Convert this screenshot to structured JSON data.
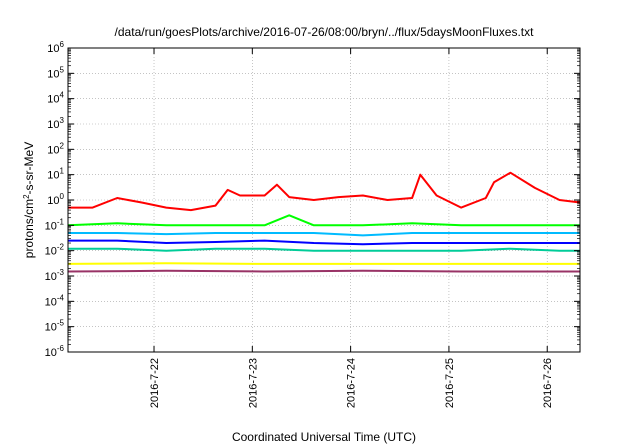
{
  "chart_data": {
    "type": "line",
    "title": "/data/run/goesPlots/archive/2016-07-26/08:00/bryn/../flux/5daysMoonFluxes.txt",
    "xlabel": "Coordinated Universal Time (UTC)",
    "ylabel_parts": [
      "protons/cm",
      "2",
      "-s-sr-MeV"
    ],
    "x_range": [
      "2016-07-21T03:00",
      "2016-07-26T08:00"
    ],
    "x_ticks": [
      "2016-7-22",
      "2016-7-23",
      "2016-7-24",
      "2016-7-25",
      "2016-7-26"
    ],
    "y_scale": "log",
    "ylim": [
      1e-06,
      1000000.0
    ],
    "y_ticks": [
      {
        "base": "10",
        "exp": "-6"
      },
      {
        "base": "10",
        "exp": "-5"
      },
      {
        "base": "10",
        "exp": "-4"
      },
      {
        "base": "10",
        "exp": "-3"
      },
      {
        "base": "10",
        "exp": "-2"
      },
      {
        "base": "10",
        "exp": "-1"
      },
      {
        "base": "10",
        "exp": "0"
      },
      {
        "base": "10",
        "exp": "1"
      },
      {
        "base": "10",
        "exp": "2"
      },
      {
        "base": "10",
        "exp": "3"
      },
      {
        "base": "10",
        "exp": "4"
      },
      {
        "base": "10",
        "exp": "5"
      },
      {
        "base": "10",
        "exp": "6"
      }
    ],
    "grid": true,
    "series": [
      {
        "color": "#ff0000",
        "x": [
          "2016-07-21T03:00",
          "2016-07-21T09:00",
          "2016-07-21T15:00",
          "2016-07-21T21:00",
          "2016-07-22T03:00",
          "2016-07-22T09:00",
          "2016-07-22T15:00",
          "2016-07-22T18:00",
          "2016-07-22T21:00",
          "2016-07-23T03:00",
          "2016-07-23T06:00",
          "2016-07-23T09:00",
          "2016-07-23T15:00",
          "2016-07-23T21:00",
          "2016-07-24T03:00",
          "2016-07-24T09:00",
          "2016-07-24T15:00",
          "2016-07-24T17:00",
          "2016-07-24T21:00",
          "2016-07-25T03:00",
          "2016-07-25T09:00",
          "2016-07-25T11:00",
          "2016-07-25T15:00",
          "2016-07-25T21:00",
          "2016-07-26T03:00",
          "2016-07-26T08:00"
        ],
        "y": [
          0.5,
          0.5,
          1.2,
          0.8,
          0.5,
          0.4,
          0.6,
          2.5,
          1.5,
          1.5,
          4,
          1.3,
          1.0,
          1.3,
          1.5,
          1.0,
          1.2,
          10,
          1.5,
          0.5,
          1.2,
          5,
          12,
          3,
          1.0,
          0.8
        ]
      },
      {
        "color": "#00ff00",
        "x": [
          "2016-07-21T03:00",
          "2016-07-21T15:00",
          "2016-07-22T03:00",
          "2016-07-22T15:00",
          "2016-07-23T03:00",
          "2016-07-23T09:00",
          "2016-07-23T15:00",
          "2016-07-24T03:00",
          "2016-07-24T15:00",
          "2016-07-25T03:00",
          "2016-07-25T15:00",
          "2016-07-26T03:00",
          "2016-07-26T08:00"
        ],
        "y": [
          0.1,
          0.12,
          0.1,
          0.1,
          0.1,
          0.25,
          0.1,
          0.1,
          0.12,
          0.1,
          0.1,
          0.1,
          0.1
        ]
      },
      {
        "color": "#00bbff",
        "x": [
          "2016-07-21T03:00",
          "2016-07-21T15:00",
          "2016-07-22T03:00",
          "2016-07-22T15:00",
          "2016-07-23T03:00",
          "2016-07-23T15:00",
          "2016-07-24T03:00",
          "2016-07-24T15:00",
          "2016-07-25T03:00",
          "2016-07-25T15:00",
          "2016-07-26T03:00",
          "2016-07-26T08:00"
        ],
        "y": [
          0.05,
          0.05,
          0.045,
          0.05,
          0.05,
          0.05,
          0.04,
          0.05,
          0.05,
          0.05,
          0.05,
          0.05
        ]
      },
      {
        "color": "#0000ff",
        "x": [
          "2016-07-21T03:00",
          "2016-07-21T15:00",
          "2016-07-22T03:00",
          "2016-07-22T15:00",
          "2016-07-23T03:00",
          "2016-07-23T15:00",
          "2016-07-24T03:00",
          "2016-07-24T15:00",
          "2016-07-25T03:00",
          "2016-07-25T15:00",
          "2016-07-26T03:00",
          "2016-07-26T08:00"
        ],
        "y": [
          0.025,
          0.025,
          0.02,
          0.022,
          0.025,
          0.02,
          0.018,
          0.02,
          0.02,
          0.02,
          0.02,
          0.02
        ]
      },
      {
        "color": "#00cc99",
        "x": [
          "2016-07-21T03:00",
          "2016-07-21T15:00",
          "2016-07-22T03:00",
          "2016-07-22T15:00",
          "2016-07-23T03:00",
          "2016-07-23T15:00",
          "2016-07-24T03:00",
          "2016-07-24T15:00",
          "2016-07-25T03:00",
          "2016-07-25T15:00",
          "2016-07-26T03:00",
          "2016-07-26T08:00"
        ],
        "y": [
          0.012,
          0.012,
          0.01,
          0.012,
          0.012,
          0.01,
          0.01,
          0.01,
          0.01,
          0.012,
          0.01,
          0.01
        ]
      },
      {
        "color": "#ffff00",
        "x": [
          "2016-07-21T03:00",
          "2016-07-22T03:00",
          "2016-07-23T03:00",
          "2016-07-24T03:00",
          "2016-07-25T03:00",
          "2016-07-26T03:00",
          "2016-07-26T08:00"
        ],
        "y": [
          0.003,
          0.0032,
          0.003,
          0.003,
          0.003,
          0.003,
          0.003
        ]
      },
      {
        "color": "#993366",
        "x": [
          "2016-07-21T03:00",
          "2016-07-22T03:00",
          "2016-07-23T03:00",
          "2016-07-24T03:00",
          "2016-07-25T03:00",
          "2016-07-26T03:00",
          "2016-07-26T08:00"
        ],
        "y": [
          0.0015,
          0.0016,
          0.0015,
          0.0016,
          0.0015,
          0.0015,
          0.0015
        ]
      }
    ]
  }
}
